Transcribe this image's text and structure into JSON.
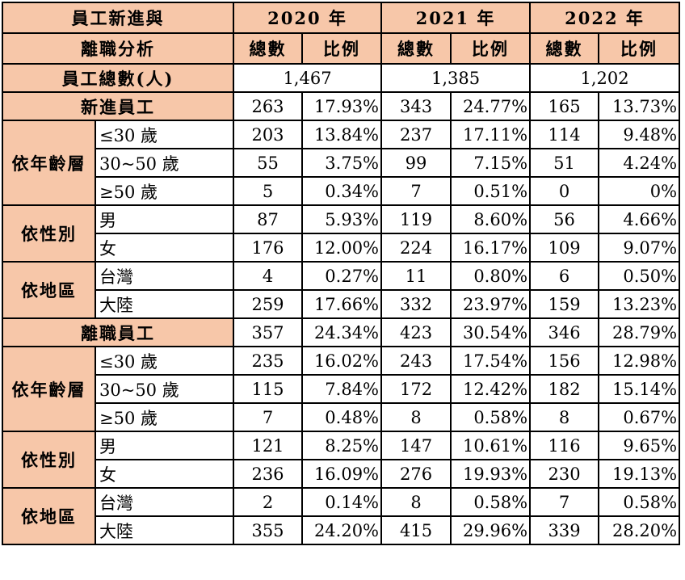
{
  "header": {
    "title_line1": "員工新進與",
    "title_line2": "離職分析",
    "years": [
      "2020 年",
      "2021 年",
      "2022 年"
    ],
    "col_total": "總數",
    "col_ratio": "比例"
  },
  "total_row": {
    "label": "員工總數(人)",
    "values": [
      "1,467",
      "1,385",
      "1,202"
    ]
  },
  "sections": [
    {
      "title": "新進員工",
      "values": [
        "263",
        "17.93%",
        "343",
        "24.77%",
        "165",
        "13.73%"
      ],
      "groups": [
        {
          "label": "依年齡層",
          "rows": [
            {
              "label": "≤30 歲",
              "values": [
                "203",
                "13.84%",
                "237",
                "17.11%",
                "114",
                "9.48%"
              ]
            },
            {
              "label": "30~50 歲",
              "values": [
                "55",
                "3.75%",
                "99",
                "7.15%",
                "51",
                "4.24%"
              ]
            },
            {
              "label": "≥50 歲",
              "values": [
                "5",
                "0.34%",
                "7",
                "0.51%",
                "0",
                "0%"
              ]
            }
          ]
        },
        {
          "label": "依性別",
          "rows": [
            {
              "label": "男",
              "values": [
                "87",
                "5.93%",
                "119",
                "8.60%",
                "56",
                "4.66%"
              ]
            },
            {
              "label": "女",
              "values": [
                "176",
                "12.00%",
                "224",
                "16.17%",
                "109",
                "9.07%"
              ]
            }
          ]
        },
        {
          "label": "依地區",
          "rows": [
            {
              "label": "台灣",
              "values": [
                "4",
                "0.27%",
                "11",
                "0.80%",
                "6",
                "0.50%"
              ]
            },
            {
              "label": "大陸",
              "values": [
                "259",
                "17.66%",
                "332",
                "23.97%",
                "159",
                "13.23%"
              ]
            }
          ]
        }
      ]
    },
    {
      "title": "離職員工",
      "values": [
        "357",
        "24.34%",
        "423",
        "30.54%",
        "346",
        "28.79%"
      ],
      "groups": [
        {
          "label": "依年齡層",
          "rows": [
            {
              "label": "≤30 歲",
              "values": [
                "235",
                "16.02%",
                "243",
                "17.54%",
                "156",
                "12.98%"
              ]
            },
            {
              "label": "30~50 歲",
              "values": [
                "115",
                "7.84%",
                "172",
                "12.42%",
                "182",
                "15.14%"
              ]
            },
            {
              "label": "≥50 歲",
              "values": [
                "7",
                "0.48%",
                "8",
                "0.58%",
                "8",
                "0.67%"
              ]
            }
          ]
        },
        {
          "label": "依性別",
          "rows": [
            {
              "label": "男",
              "values": [
                "121",
                "8.25%",
                "147",
                "10.61%",
                "116",
                "9.65%"
              ]
            },
            {
              "label": "女",
              "values": [
                "236",
                "16.09%",
                "276",
                "19.93%",
                "230",
                "19.13%"
              ]
            }
          ]
        },
        {
          "label": "依地區",
          "rows": [
            {
              "label": "台灣",
              "values": [
                "2",
                "0.14%",
                "8",
                "0.58%",
                "7",
                "0.58%"
              ]
            },
            {
              "label": "大陸",
              "values": [
                "355",
                "24.20%",
                "415",
                "29.96%",
                "339",
                "28.20%"
              ]
            }
          ]
        }
      ]
    }
  ]
}
